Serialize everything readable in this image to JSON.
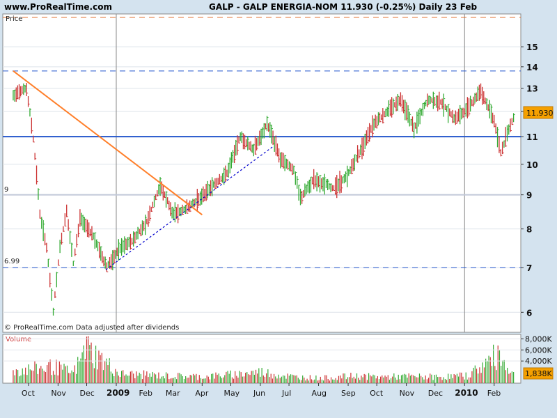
{
  "header": {
    "site": "www.ProRealTime.com",
    "title": "GALP - GALP ENERGIA-NOM    11.930 (-0.25%)    Daily  23 Feb"
  },
  "price_panel": {
    "label": "Price",
    "footer": "© ProRealTime.com  Data adjusted after dividends",
    "current_value_label": "11.930",
    "left_level_labels": [
      {
        "text": "9",
        "value": 9
      },
      {
        "text": "6.99",
        "value": 6.99
      }
    ]
  },
  "volume_panel": {
    "label": "Volume",
    "current_value_label": "1,838K"
  },
  "colors": {
    "background": "#d4e3ef",
    "panel": "#ffffff",
    "up": "#33aa33",
    "down": "#cc3333",
    "trendline": "#ff7f2a",
    "support": "#2255cc"
  },
  "chart_data": [
    {
      "type": "candlestick",
      "title": "GALP - GALP ENERGIA-NOM",
      "y_scale": "log",
      "ylim": [
        5.6,
        16.8
      ],
      "y_ticks": [
        6,
        7,
        8,
        9,
        10,
        11,
        12,
        13,
        14,
        15
      ],
      "x_ticks": [
        "Oct",
        "Nov",
        "Dec",
        "2009",
        "Feb",
        "Mar",
        "Apr",
        "May",
        "Jun",
        "Jul",
        "Aug",
        "Sep",
        "Oct",
        "Nov",
        "Dec",
        "2010",
        "Feb"
      ],
      "x_range": [
        "2008-09-15",
        "2010-02-23"
      ],
      "series": [
        {
          "values": [
            [
              "2008-09-15",
              12.7
            ],
            [
              "2008-09-29",
              13.0
            ],
            [
              "2008-10-06",
              10.9
            ],
            [
              "2008-10-13",
              8.4
            ],
            [
              "2008-10-20",
              7.5
            ],
            [
              "2008-10-27",
              6.0
            ],
            [
              "2008-11-03",
              7.5
            ],
            [
              "2008-11-10",
              8.5
            ],
            [
              "2008-11-17",
              7.1
            ],
            [
              "2008-11-24",
              8.3
            ],
            [
              "2008-12-08",
              7.8
            ],
            [
              "2008-12-22",
              7.0
            ],
            [
              "2009-01-05",
              7.5
            ],
            [
              "2009-01-19",
              7.7
            ],
            [
              "2009-02-02",
              8.2
            ],
            [
              "2009-02-16",
              9.3
            ],
            [
              "2009-03-02",
              8.4
            ],
            [
              "2009-03-16",
              8.6
            ],
            [
              "2009-03-30",
              8.9
            ],
            [
              "2009-04-13",
              9.3
            ],
            [
              "2009-04-27",
              9.7
            ],
            [
              "2009-05-11",
              11.0
            ],
            [
              "2009-05-25",
              10.5
            ],
            [
              "2009-06-08",
              11.5
            ],
            [
              "2009-06-22",
              10.2
            ],
            [
              "2009-07-06",
              9.8
            ],
            [
              "2009-07-13",
              8.9
            ],
            [
              "2009-07-27",
              9.5
            ],
            [
              "2009-08-17",
              9.2
            ],
            [
              "2009-08-31",
              9.6
            ],
            [
              "2009-09-14",
              10.5
            ],
            [
              "2009-09-28",
              11.5
            ],
            [
              "2009-10-12",
              12.0
            ],
            [
              "2009-10-26",
              12.5
            ],
            [
              "2009-11-09",
              11.3
            ],
            [
              "2009-11-23",
              12.5
            ],
            [
              "2009-12-07",
              12.4
            ],
            [
              "2009-12-21",
              11.7
            ],
            [
              "2010-01-04",
              12.1
            ],
            [
              "2010-01-18",
              12.9
            ],
            [
              "2010-02-01",
              11.6
            ],
            [
              "2010-02-08",
              10.4
            ],
            [
              "2010-02-23",
              11.93
            ]
          ]
        }
      ],
      "annotations": {
        "horizontal_lines": [
          {
            "value": 17.3,
            "style": "dashed",
            "color": "#e07030"
          },
          {
            "value": 13.8,
            "style": "dashed",
            "color": "#2255cc"
          },
          {
            "value": 11.0,
            "style": "solid",
            "color": "#2255cc"
          },
          {
            "value": 9.0,
            "style": "solid",
            "color": "#c0c8d8"
          },
          {
            "value": 7.0,
            "style": "dashed",
            "color": "#2255cc"
          }
        ],
        "trendlines": [
          {
            "from": [
              "2008-09-15",
              13.8
            ],
            "to": [
              "2009-04-01",
              8.4
            ],
            "color": "#ff7f2a",
            "style": "solid"
          },
          {
            "from": [
              "2008-12-21",
              6.95
            ],
            "to": [
              "2009-06-15",
              10.65
            ],
            "color": "#0000cc",
            "style": "dotted"
          }
        ],
        "vertical_markers": [
          "2009-01-01",
          "2010-01-01"
        ]
      }
    },
    {
      "type": "bar",
      "title": "Volume",
      "y_ticks": [
        "4,000K",
        "6,000K",
        "8,000K"
      ],
      "ylim": [
        0,
        8800
      ],
      "values_k": [
        [
          "2008-09-15",
          3000
        ],
        [
          "2008-10-06",
          3400
        ],
        [
          "2008-10-27",
          4000
        ],
        [
          "2008-11-17",
          2400
        ],
        [
          "2008-12-01",
          8400
        ],
        [
          "2009-01-05",
          2200
        ],
        [
          "2009-02-02",
          2000
        ],
        [
          "2009-03-02",
          1700
        ],
        [
          "2009-04-06",
          1600
        ],
        [
          "2009-05-04",
          2100
        ],
        [
          "2009-06-01",
          2700
        ],
        [
          "2009-07-06",
          1500
        ],
        [
          "2009-08-03",
          1200
        ],
        [
          "2009-09-07",
          1700
        ],
        [
          "2009-10-05",
          1500
        ],
        [
          "2009-11-02",
          1600
        ],
        [
          "2009-12-07",
          1500
        ],
        [
          "2010-01-04",
          1800
        ],
        [
          "2010-02-05",
          6800
        ],
        [
          "2010-02-23",
          1838
        ]
      ]
    }
  ]
}
